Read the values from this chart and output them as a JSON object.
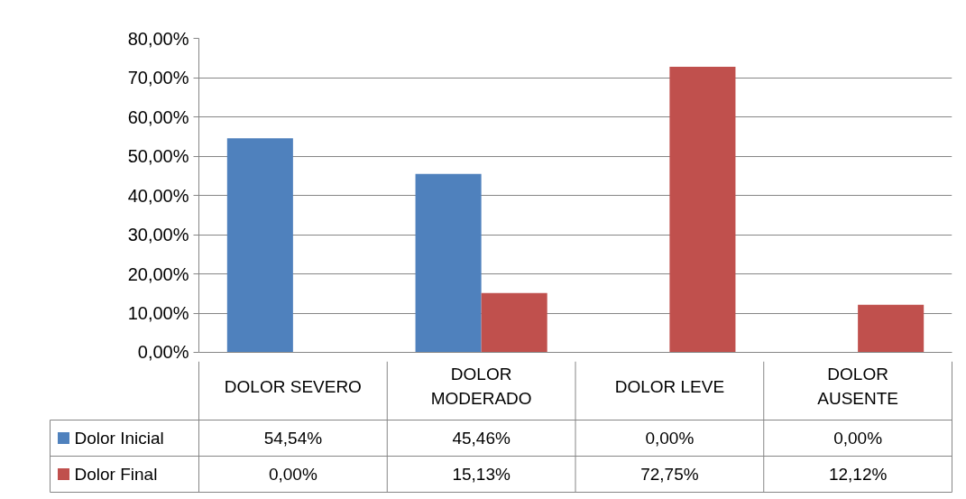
{
  "chart_data": {
    "type": "bar",
    "categories": [
      "DOLOR SEVERO",
      "DOLOR MODERADO",
      "DOLOR LEVE",
      "DOLOR AUSENTE"
    ],
    "series": [
      {
        "name": "Dolor Inicial",
        "color": "#4f81bd",
        "values": [
          54.54,
          45.46,
          0,
          0
        ],
        "value_labels": [
          "54,54%",
          "45,46%",
          "0,00%",
          "0,00%"
        ]
      },
      {
        "name": "Dolor Final",
        "color": "#c0504d",
        "values": [
          0,
          15.13,
          72.75,
          12.12
        ],
        "value_labels": [
          "0,00%",
          "15,13%",
          "72,75%",
          "12,12%"
        ]
      }
    ],
    "ylim": [
      0,
      80
    ],
    "yticks": [
      {
        "value": 0,
        "label": "0,00%"
      },
      {
        "value": 10,
        "label": "10,00%"
      },
      {
        "value": 20,
        "label": "20,00%"
      },
      {
        "value": 30,
        "label": "30,00%"
      },
      {
        "value": 40,
        "label": "40,00%"
      },
      {
        "value": 50,
        "label": "50,00%"
      },
      {
        "value": 60,
        "label": "60,00%"
      },
      {
        "value": 70,
        "label": "70,00%"
      },
      {
        "value": 80,
        "label": "80,00%"
      }
    ],
    "grid": "y",
    "legend": "bottom"
  }
}
